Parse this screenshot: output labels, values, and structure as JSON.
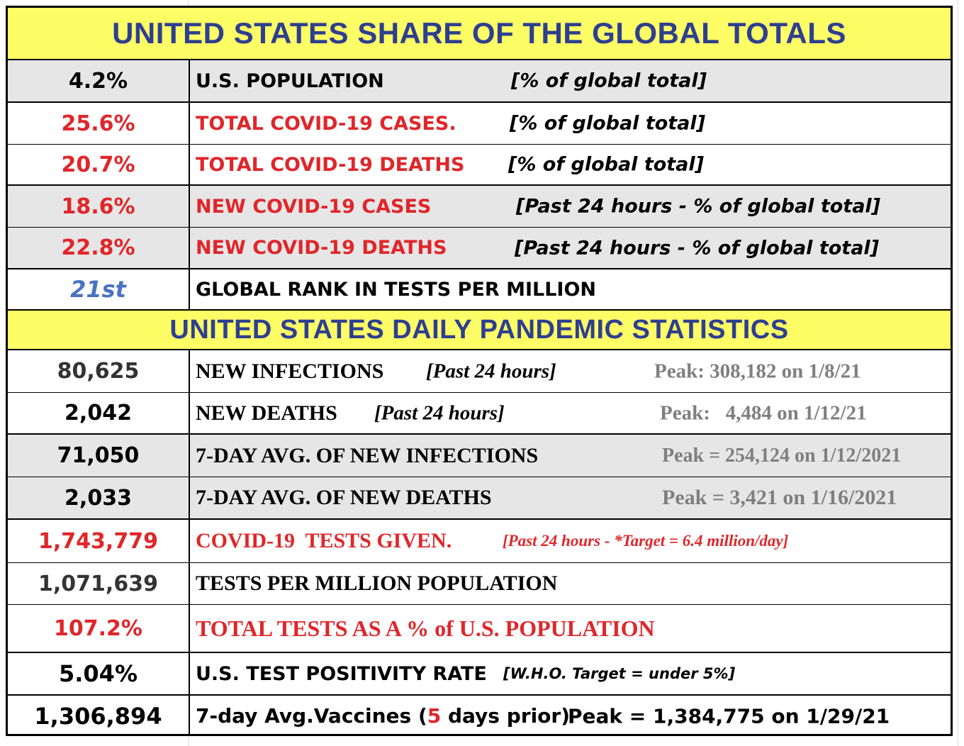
{
  "header1": "UNITED STATES SHARE OF THE GLOBAL TOTALS",
  "header2": "UNITED STATES DAILY PANDEMIC STATISTICS",
  "share_rows": [
    {
      "value": "4.2%",
      "label": "U.S. POPULATION",
      "note": "[% of global total]"
    },
    {
      "value": "25.6%",
      "label": "TOTAL COVID-19 CASES.",
      "note": "[% of global total]"
    },
    {
      "value": "20.7%",
      "label": "TOTAL COVID-19 DEATHS",
      "note": "[% of global total]"
    },
    {
      "value": "18.6%",
      "label": "NEW COVID-19 CASES",
      "note": "[Past 24 hours - % of global total]"
    },
    {
      "value": "22.8%",
      "label": "NEW COVID-19 DEATHS",
      "note": "[Past 24 hours - % of global total]"
    },
    {
      "value": "21st",
      "label": "GLOBAL RANK IN TESTS PER MILLION"
    }
  ],
  "daily_rows": [
    {
      "value": "80,625",
      "label": "NEW INFECTIONS",
      "note": "[Past 24 hours]",
      "peak": "Peak: 308,182 on 1/8/21"
    },
    {
      "value": "2,042",
      "label": "NEW DEATHS",
      "note": "[Past 24 hours]",
      "peak": "Peak:   4,484 on 1/12/21"
    },
    {
      "value": "71,050",
      "label": "7-DAY AVG. OF NEW INFECTIONS",
      "peak": "Peak = 254,124 on 1/12/2021"
    },
    {
      "value": "2,033",
      "label": "7-DAY AVG. OF NEW DEATHS",
      "peak": "Peak = 3,421 on 1/16/2021"
    },
    {
      "value": "1,743,779",
      "label": "COVID-19  TESTS GIVEN.",
      "note": "[Past 24 hours - *Target = 6.4 million/day]"
    },
    {
      "value": "1,071,639",
      "label": "TESTS PER MILLION POPULATION"
    },
    {
      "value": "107.2%",
      "label": "TOTAL TESTS AS A % of U.S. POPULATION"
    },
    {
      "value": "5.04%",
      "label": "U.S. TEST POSITIVITY RATE",
      "note": "[W.H.O. Target = under 5%]"
    },
    {
      "value": "1,306,894",
      "label_pre": "7-day Avg.Vaccines (",
      "label_num": "5",
      "label_post": " days prior)",
      "peak": "Peak = 1,384,775 on 1/29/21"
    }
  ],
  "colors": {
    "title": "#2e3f8f",
    "header_bg": "#fdfd66",
    "red": "#e0262a",
    "blue": "#4a72c4",
    "peak_gray": "#7f7f7f",
    "row_gray": "#e6e6e6"
  }
}
